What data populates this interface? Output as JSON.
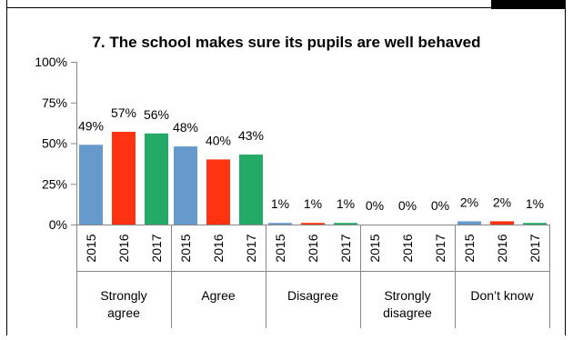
{
  "chart_data": {
    "type": "bar",
    "title": "7. The school makes sure its pupils are well behaved",
    "groups": [
      "Strongly agree",
      "Agree",
      "Disagree",
      "Strongly disagree",
      "Don’t know"
    ],
    "series_years": [
      "2015",
      "2016",
      "2017"
    ],
    "series_colors": [
      "#6699cc",
      "#ff3311",
      "#22aa66"
    ],
    "values": [
      [
        49,
        57,
        56
      ],
      [
        48,
        40,
        43
      ],
      [
        1,
        1,
        1
      ],
      [
        0,
        0,
        0
      ],
      [
        2,
        2,
        1
      ]
    ],
    "value_labels": [
      [
        "49%",
        "57%",
        "56%"
      ],
      [
        "48%",
        "40%",
        "43%"
      ],
      [
        "1%",
        "1%",
        "1%"
      ],
      [
        "0%",
        "0%",
        "0%"
      ],
      [
        "2%",
        "2%",
        "1%"
      ]
    ],
    "y_ticks": [
      "0%",
      "25%",
      "50%",
      "75%",
      "100%"
    ],
    "ylim": [
      0,
      100
    ],
    "grid": false,
    "legend": "none"
  }
}
